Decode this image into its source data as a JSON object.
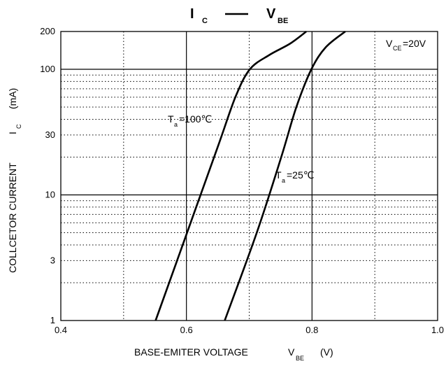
{
  "chart_data": {
    "type": "line",
    "title": {
      "main": "I",
      "main_sub": "C",
      "dash": "—",
      "second": "V",
      "second_sub": "BE"
    },
    "xlabel": {
      "text": "BASE-EMITER VOLTAGE",
      "symbol": "V",
      "symbol_sub": "BE",
      "unit": "(V)"
    },
    "ylabel": {
      "text": "COLLCETOR CURRENT",
      "symbol": "I",
      "symbol_sub": "C",
      "unit": "(mA)"
    },
    "xlim": [
      0.4,
      1.0
    ],
    "ylim": [
      1,
      200
    ],
    "yscale": "log",
    "x_ticks": [
      "0.4",
      "0.6",
      "0.8",
      "1.0"
    ],
    "y_ticks": [
      "1",
      "3",
      "10",
      "30",
      "100",
      "200"
    ],
    "grid": true,
    "condition": {
      "symbol": "V",
      "sub": "CE",
      "value": "=20V"
    },
    "series": [
      {
        "name": "Ta=100℃",
        "label": {
          "symbol": "T",
          "sub": "a",
          "value": "=100℃"
        },
        "x": [
          0.551,
          0.601,
          0.651,
          0.678,
          0.701,
          0.732,
          0.765,
          0.791
        ],
        "y": [
          1,
          5,
          25,
          60,
          100,
          130,
          160,
          200
        ]
      },
      {
        "name": "Ta=25℃",
        "label": {
          "symbol": "T",
          "sub": "a",
          "value": "=25℃"
        },
        "x": [
          0.661,
          0.712,
          0.751,
          0.775,
          0.799,
          0.822,
          0.853
        ],
        "y": [
          1,
          5,
          20,
          50,
          100,
          150,
          200
        ]
      }
    ]
  }
}
